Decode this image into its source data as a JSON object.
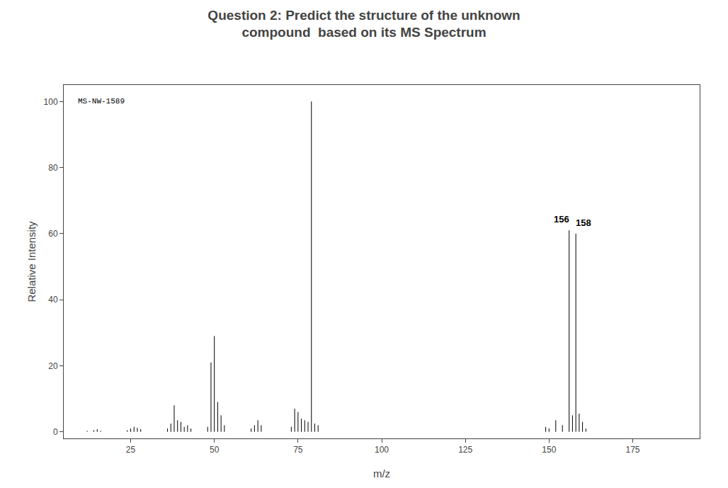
{
  "chart_data": {
    "type": "stem",
    "title": "Question 2: Predict the structure of the unknown\ncompound  based on its MS Spectrum",
    "x_label": "m/z",
    "y_label": "Relative Intensity",
    "x": [
      12,
      14,
      15,
      16,
      24,
      25,
      26,
      27,
      28,
      36,
      37,
      38,
      39,
      40,
      41,
      42,
      43,
      48,
      49,
      50,
      51,
      52,
      53,
      61,
      62,
      63,
      64,
      73,
      74,
      75,
      76,
      77,
      78,
      79,
      80,
      81,
      149,
      150,
      152,
      154,
      156,
      157,
      158,
      159,
      160,
      161
    ],
    "values": [
      0.3,
      0.5,
      0.8,
      0.3,
      0.5,
      1.0,
      1.5,
      1.2,
      0.8,
      1.0,
      2.5,
      8.0,
      3.5,
      3.0,
      1.5,
      2.0,
      1.0,
      1.5,
      21.0,
      29.0,
      9.0,
      5.0,
      2.0,
      1.0,
      2.0,
      3.5,
      2.0,
      1.5,
      7.0,
      6.0,
      4.0,
      3.5,
      3.0,
      100.0,
      2.5,
      2.0,
      1.5,
      1.0,
      3.5,
      2.0,
      61.0,
      5.0,
      60.0,
      5.5,
      3.0,
      1.0
    ],
    "color": "#000000",
    "annotations": [
      {
        "text": "156",
        "x": 156,
        "y": 61.0
      },
      {
        "text": "158",
        "x": 158,
        "y": 60.0
      },
      {
        "text": "MS-NW-1589"
      }
    ],
    "xlim": [
      5,
      195
    ],
    "ylim": [
      -2,
      105
    ],
    "xticks": [
      25,
      50,
      75,
      100,
      125,
      150,
      175
    ],
    "yticks": [
      0,
      20,
      40,
      60,
      80,
      100
    ],
    "grid": false
  }
}
